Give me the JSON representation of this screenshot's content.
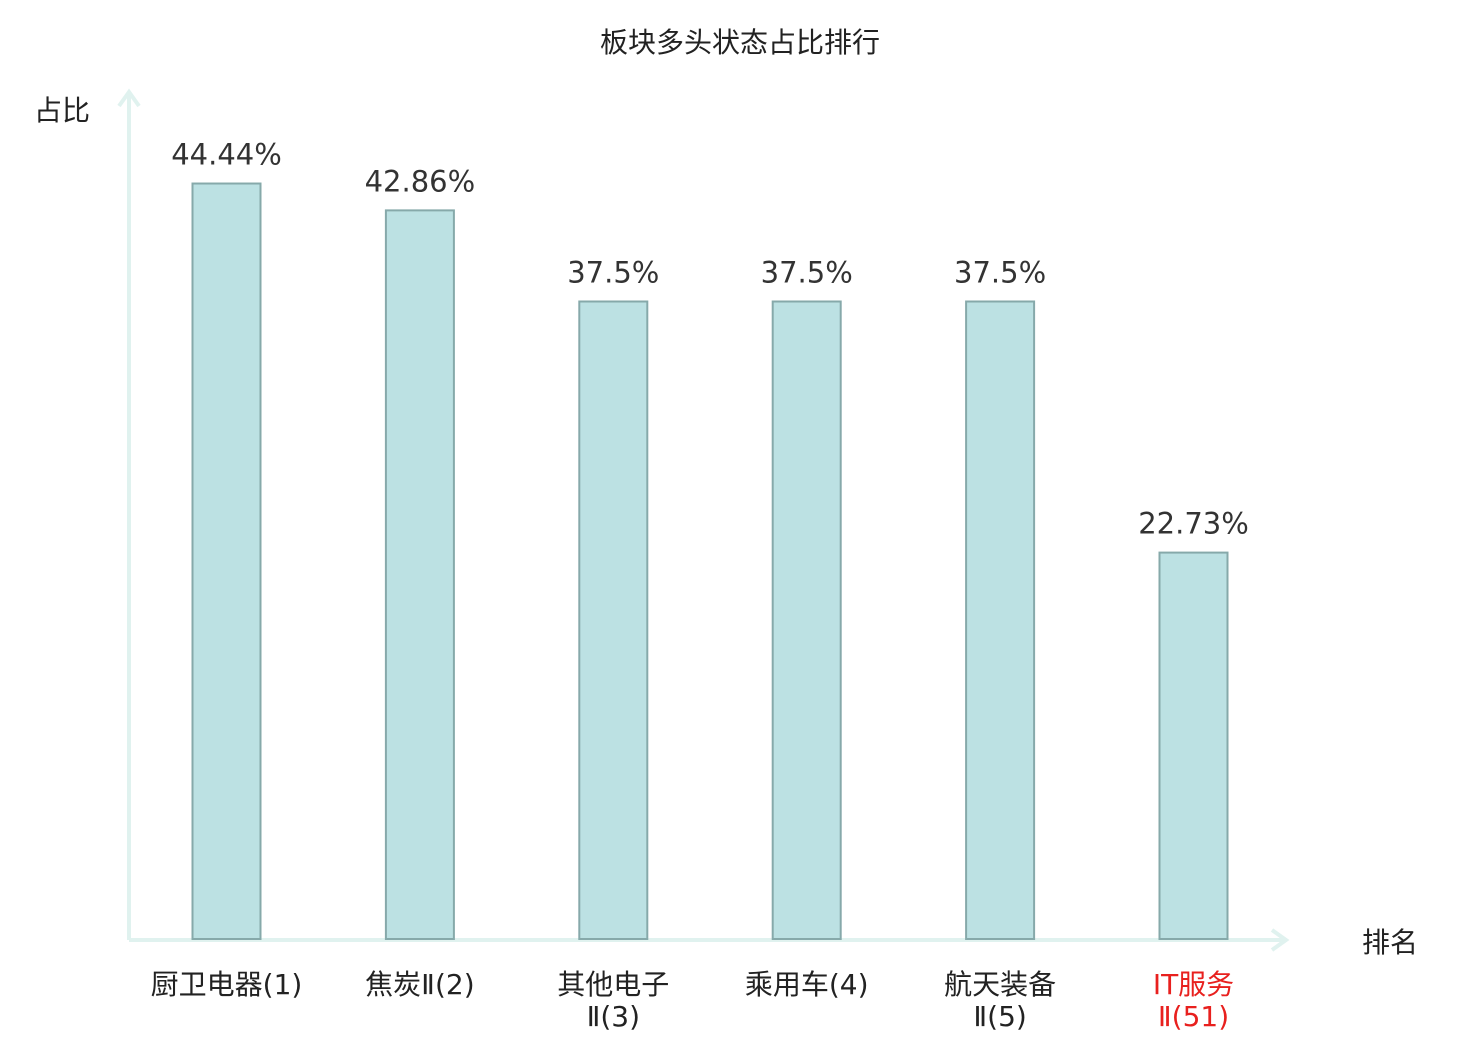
{
  "chart_data": {
    "type": "bar",
    "title": "板块多头状态占比排行",
    "xlabel": "排名",
    "ylabel": "占比",
    "ylim": [
      0,
      50
    ],
    "grid": false,
    "categories": [
      {
        "line1": "厨卫电器(1)",
        "line2": "",
        "highlight": false
      },
      {
        "line1": "焦炭Ⅱ(2)",
        "line2": "",
        "highlight": false
      },
      {
        "line1": "其他电子",
        "line2": "Ⅱ(3)",
        "highlight": false
      },
      {
        "line1": "乘用车(4)",
        "line2": "",
        "highlight": false
      },
      {
        "line1": "航天装备",
        "line2": "Ⅱ(5)",
        "highlight": false
      },
      {
        "line1": "IT服务",
        "line2": "Ⅱ(51)",
        "highlight": true
      }
    ],
    "values": [
      44.44,
      42.86,
      37.5,
      37.5,
      37.5,
      22.73
    ],
    "value_labels": [
      "44.44%",
      "42.86%",
      "37.5%",
      "37.5%",
      "37.5%",
      "22.73%"
    ],
    "colors": {
      "bar_fill": "#bce1e3",
      "bar_stroke": "#86a9aa",
      "axis": "#e0f2ef",
      "label_text": "#222222",
      "value_text": "#333333",
      "highlight_text": "#e8201e"
    }
  }
}
